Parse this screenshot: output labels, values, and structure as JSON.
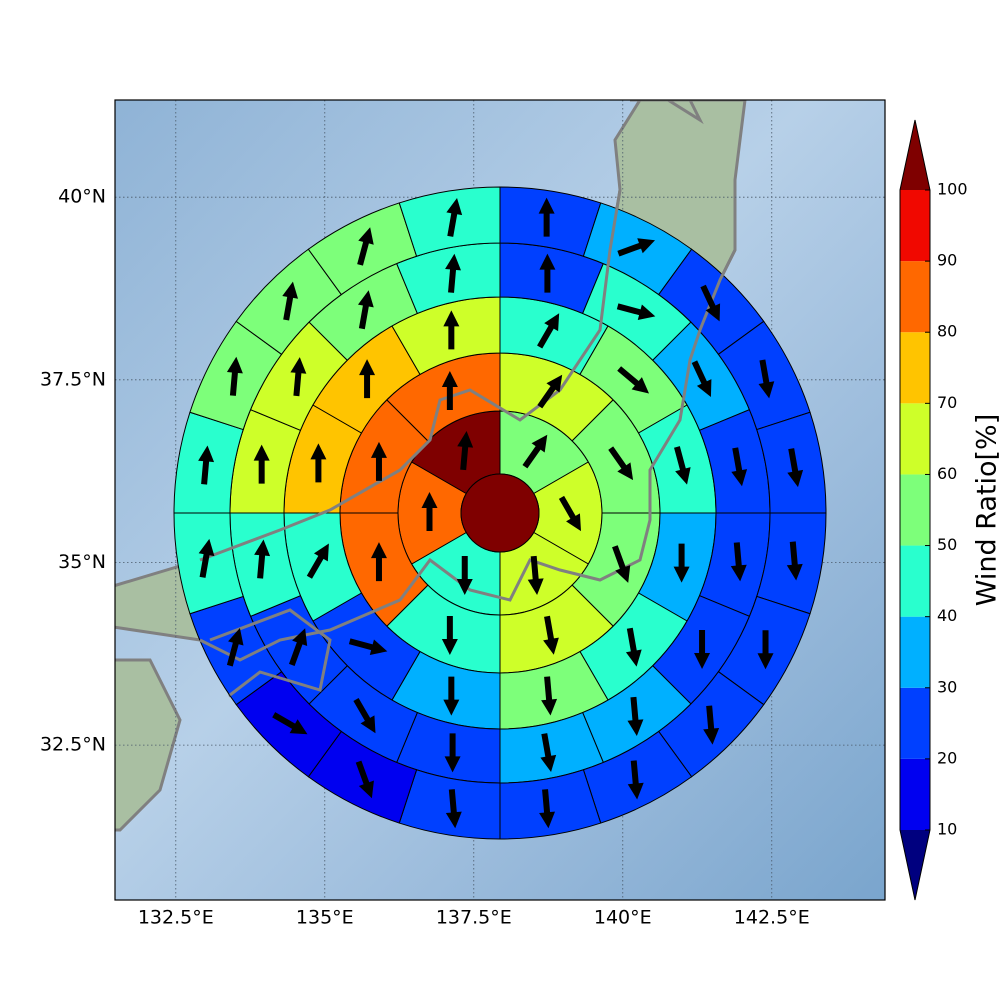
{
  "chart_data": {
    "type": "polar_sector_map",
    "xlim": [
      131.48,
      144.4
    ],
    "ylim": [
      30.38,
      41.33
    ],
    "xticks": [
      {
        "value": 132.5,
        "label": "132.5°E"
      },
      {
        "value": 135,
        "label": "135°E"
      },
      {
        "value": 137.5,
        "label": "137.5°E"
      },
      {
        "value": 140,
        "label": "140°E"
      },
      {
        "value": 142.5,
        "label": "142.5°E"
      }
    ],
    "yticks": [
      {
        "value": 32.5,
        "label": "32.5°N"
      },
      {
        "value": 35,
        "label": "35°N"
      },
      {
        "value": 37.5,
        "label": "37.5°N"
      },
      {
        "value": 40,
        "label": "40°N"
      }
    ],
    "grid": true,
    "center_value": 100,
    "rings": [
      {
        "values": [
          55,
          65,
          65,
          45,
          85,
          100
        ],
        "directions": [
          35,
          150,
          175,
          180,
          0,
          5
        ]
      },
      {
        "values": [
          65,
          55,
          55,
          65,
          45,
          85,
          85,
          85
        ],
        "directions": [
          35,
          145,
          160,
          170,
          180,
          0,
          0,
          0
        ]
      },
      {
        "values": [
          45,
          55,
          45,
          35,
          45,
          55,
          35,
          25,
          45,
          75,
          75,
          65
        ],
        "directions": [
          30,
          130,
          165,
          180,
          170,
          175,
          180,
          105,
          30,
          0,
          0,
          0
        ]
      },
      {
        "values": [
          25,
          45,
          35,
          25,
          25,
          25,
          35,
          35,
          25,
          25,
          25,
          45,
          65,
          65,
          55,
          45
        ],
        "directions": [
          0,
          105,
          155,
          170,
          175,
          180,
          175,
          170,
          180,
          150,
          20,
          5,
          0,
          5,
          10,
          5
        ]
      },
      {
        "values": [
          25,
          35,
          25,
          25,
          25,
          25,
          25,
          25,
          25,
          25,
          25,
          15,
          15,
          25,
          45,
          45,
          55,
          55,
          55,
          45
        ],
        "directions": [
          0,
          70,
          155,
          170,
          170,
          175,
          180,
          175,
          175,
          175,
          175,
          160,
          120,
          15,
          10,
          5,
          5,
          10,
          15,
          10
        ]
      }
    ],
    "colorbar": {
      "label": "Wind Ratio[%]",
      "levels": [
        10,
        20,
        30,
        40,
        50,
        60,
        70,
        80,
        90,
        100
      ],
      "colors": [
        "#00007f",
        "#0000f0",
        "#0040ff",
        "#00b0ff",
        "#29ffce",
        "#7dff7a",
        "#ceff29",
        "#ffc400",
        "#ff6800",
        "#f10800",
        "#7f0000"
      ],
      "extend": "both"
    }
  }
}
